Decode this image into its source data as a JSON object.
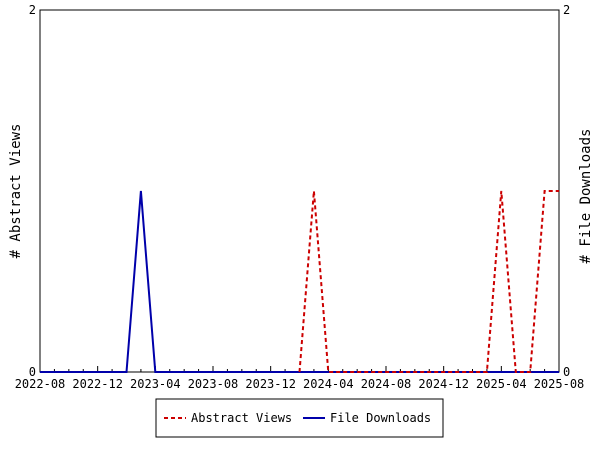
{
  "chart_data": {
    "type": "line",
    "ylabel_left": "# Abstract Views",
    "ylabel_right": "# File Downloads",
    "xlabel": "",
    "x_tick_labels": [
      "2022-08",
      "2022-12",
      "2023-04",
      "2023-08",
      "2023-12",
      "2024-04",
      "2024-08",
      "2024-12",
      "2025-04",
      "2025-08"
    ],
    "x_range": [
      "2022-08",
      "2025-08"
    ],
    "y_left_range": [
      0,
      2
    ],
    "y_right_range": [
      0,
      2
    ],
    "y_left_ticks": [
      "0",
      "2"
    ],
    "y_right_ticks": [
      "0",
      "2"
    ],
    "grid": false,
    "legend_position": "bottom",
    "series": [
      {
        "name": "Abstract Views",
        "color": "#cc0000",
        "line_style": "dashed",
        "axis": "left",
        "points": [
          {
            "x": "2024-02",
            "y": 0
          },
          {
            "x": "2024-03",
            "y": 1
          },
          {
            "x": "2024-04",
            "y": 0
          },
          {
            "x": "2025-03",
            "y": 0
          },
          {
            "x": "2025-04",
            "y": 1
          },
          {
            "x": "2025-05",
            "y": 0
          },
          {
            "x": "2025-06",
            "y": 0
          },
          {
            "x": "2025-07",
            "y": 1
          },
          {
            "x": "2025-08",
            "y": 1
          }
        ]
      },
      {
        "name": "File Downloads",
        "color": "#0000aa",
        "line_style": "solid",
        "axis": "right",
        "points": [
          {
            "x": "2022-08",
            "y": 0
          },
          {
            "x": "2023-02",
            "y": 0
          },
          {
            "x": "2023-03",
            "y": 1
          },
          {
            "x": "2023-04",
            "y": 0
          },
          {
            "x": "2025-08",
            "y": 0
          }
        ]
      }
    ]
  }
}
